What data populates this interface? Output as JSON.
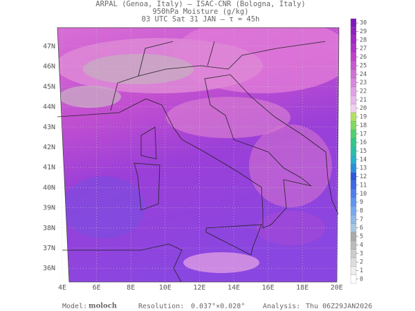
{
  "header": {
    "line1": "ARPAL (Genoa, Italy)  –  ISAC-CNR (Bologna, Italy)",
    "line2": "950hPa Moisture (g/kg)",
    "line3": "03 UTC Sat 31 JAN  –  τ = 45h"
  },
  "map": {
    "lat_labels": [
      "47N",
      "46N",
      "45N",
      "44N",
      "43N",
      "42N",
      "41N",
      "40N",
      "39N",
      "38N",
      "37N",
      "36N"
    ],
    "lon_labels": [
      "4E",
      "6E",
      "8E",
      "10E",
      "12E",
      "14E",
      "16E",
      "18E",
      "20E"
    ]
  },
  "colorbar": {
    "ticks": [
      0,
      1,
      2,
      3,
      4,
      5,
      6,
      7,
      8,
      9,
      10,
      11,
      12,
      13,
      14,
      15,
      16,
      17,
      18,
      19,
      20,
      21,
      22,
      23,
      24,
      25,
      26,
      27,
      28,
      29,
      30
    ]
  },
  "footer": {
    "model_label": "Model:",
    "model": "moloch",
    "resolution_label": "Resolution:",
    "resolution": "0.037°×0.028°",
    "analysis_label": "Analysis:",
    "analysis": "Thu 06Z29JAN2026"
  }
}
